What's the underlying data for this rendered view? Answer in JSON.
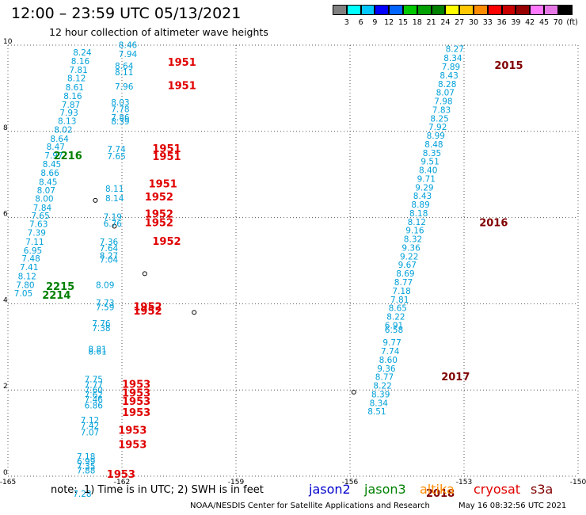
{
  "header": {
    "title": "12:00 – 23:59 UTC 05/13/2021",
    "subtitle": "12 hour collection of altimeter wave heights"
  },
  "color_scale": {
    "colors": [
      "#808080",
      "#00ffff",
      "#00c8ff",
      "#0000ff",
      "#0064ff",
      "#00c800",
      "#00a000",
      "#008000",
      "#ffff00",
      "#ffc800",
      "#ff8c00",
      "#ff0000",
      "#c80000",
      "#960000",
      "#ff78ff",
      "#e678e6",
      "#000000"
    ],
    "labels": [
      "3",
      "6",
      "9",
      "12",
      "15",
      "18",
      "21",
      "24",
      "27",
      "30",
      "33",
      "36",
      "39",
      "42",
      "45",
      "70",
      "(ft)"
    ]
  },
  "chart_data": {
    "type": "scatter",
    "x_range": [
      -165,
      -150
    ],
    "y_range": [
      0,
      10
    ],
    "x_ticks": [
      "-165",
      "-162",
      "-159",
      "-156",
      "-153",
      "-150"
    ],
    "y_ticks": [
      "0",
      "2",
      "4",
      "6",
      "8",
      "10"
    ],
    "grid": true,
    "series": [
      {
        "name": "jason2",
        "color": "#0000cc",
        "points": []
      },
      {
        "name": "jason3",
        "color": "#00a0d8",
        "points": [
          [
            -162.8,
            9.76,
            "8.24"
          ],
          [
            -162.85,
            9.56,
            "8.16"
          ],
          [
            -162.9,
            9.36,
            "7.81"
          ],
          [
            -162.95,
            9.16,
            "8.12"
          ],
          [
            -163.0,
            8.95,
            "8.61"
          ],
          [
            -163.05,
            8.75,
            "8.16"
          ],
          [
            -163.1,
            8.55,
            "7.87"
          ],
          [
            -163.15,
            8.36,
            "7.93"
          ],
          [
            -163.2,
            8.17,
            "8.13"
          ],
          [
            -163.3,
            7.97,
            "8.02"
          ],
          [
            -163.4,
            7.76,
            "8.64"
          ],
          [
            -163.5,
            7.57,
            "8.47"
          ],
          [
            -163.55,
            7.37,
            "7.97"
          ],
          [
            -163.6,
            7.17,
            "8.45"
          ],
          [
            -163.65,
            6.97,
            "8.66"
          ],
          [
            -163.7,
            6.76,
            "8.45"
          ],
          [
            -163.75,
            6.56,
            "8.07"
          ],
          [
            -163.8,
            6.37,
            "8.00"
          ],
          [
            -163.85,
            6.16,
            "7.84"
          ],
          [
            -163.9,
            5.97,
            "7.65"
          ],
          [
            -163.95,
            5.78,
            "7.63"
          ],
          [
            -164.0,
            5.58,
            "7.39"
          ],
          [
            -164.05,
            5.37,
            "7.11"
          ],
          [
            -164.1,
            5.17,
            "6.95"
          ],
          [
            -164.15,
            4.98,
            "7.48"
          ],
          [
            -164.2,
            4.78,
            "7.41"
          ],
          [
            -164.25,
            4.57,
            "8.12"
          ],
          [
            -164.3,
            4.37,
            "7.80"
          ],
          [
            -164.35,
            4.17,
            "7.05"
          ],
          [
            -161.6,
            9.94,
            "8.46"
          ],
          [
            -161.6,
            9.72,
            "7.94"
          ],
          [
            -161.7,
            9.45,
            "8.64"
          ],
          [
            -161.7,
            9.3,
            "8.11"
          ],
          [
            -161.7,
            8.97,
            "7.96"
          ],
          [
            -161.8,
            8.6,
            "8.03"
          ],
          [
            -161.8,
            8.45,
            "7.78"
          ],
          [
            -161.8,
            8.25,
            "7.86"
          ],
          [
            -161.8,
            8.16,
            "8.39"
          ],
          [
            -161.9,
            7.52,
            "7.74"
          ],
          [
            -161.9,
            7.35,
            "7.65"
          ],
          [
            -161.95,
            6.6,
            "8.11"
          ],
          [
            -161.95,
            6.38,
            "8.14"
          ],
          [
            -162.0,
            5.95,
            "7.19"
          ],
          [
            -162.0,
            5.79,
            "6.76"
          ],
          [
            -162.1,
            5.37,
            "7.36"
          ],
          [
            -162.1,
            5.22,
            "7.64"
          ],
          [
            -162.1,
            5.05,
            "8.27"
          ],
          [
            -162.1,
            4.95,
            "7.04"
          ],
          [
            -162.2,
            4.37,
            "8.09"
          ],
          [
            -162.2,
            3.95,
            "7.73"
          ],
          [
            -162.2,
            3.85,
            "7.59"
          ],
          [
            -162.3,
            3.47,
            "7.76"
          ],
          [
            -162.3,
            3.36,
            "7.38"
          ],
          [
            -162.4,
            2.88,
            "8.81"
          ],
          [
            -162.4,
            2.82,
            "8.61"
          ],
          [
            -162.5,
            2.18,
            "7.75"
          ],
          [
            -162.5,
            2.05,
            "7.77"
          ],
          [
            -162.5,
            1.93,
            "7.60"
          ],
          [
            -162.5,
            1.82,
            "7.62"
          ],
          [
            -162.5,
            1.71,
            "7.46"
          ],
          [
            -162.5,
            1.57,
            "6.86"
          ],
          [
            -162.6,
            1.23,
            "7.12"
          ],
          [
            -162.6,
            1.1,
            "7.42"
          ],
          [
            -162.6,
            0.95,
            "7.07"
          ],
          [
            -162.7,
            0.39,
            "7.18"
          ],
          [
            -162.7,
            0.28,
            "6.99"
          ],
          [
            -162.7,
            0.17,
            "7.35"
          ],
          [
            -162.7,
            0.06,
            "7.88"
          ],
          [
            -162.8,
            -0.48,
            "7.28"
          ],
          [
            -153.0,
            9.84,
            "8.27"
          ],
          [
            -153.05,
            9.63,
            "8.34"
          ],
          [
            -153.1,
            9.43,
            "7.89"
          ],
          [
            -153.15,
            9.23,
            "8.43"
          ],
          [
            -153.2,
            9.03,
            "8.28"
          ],
          [
            -153.25,
            8.83,
            "8.07"
          ],
          [
            -153.3,
            8.63,
            "7.98"
          ],
          [
            -153.35,
            8.43,
            "7.83"
          ],
          [
            -153.4,
            8.23,
            "8.25"
          ],
          [
            -153.45,
            8.03,
            "7.92"
          ],
          [
            -153.5,
            7.83,
            "8.99"
          ],
          [
            -153.55,
            7.63,
            "8.48"
          ],
          [
            -153.6,
            7.43,
            "8.35"
          ],
          [
            -153.65,
            7.23,
            "9.51"
          ],
          [
            -153.7,
            7.03,
            "8.40"
          ],
          [
            -153.75,
            6.83,
            "9.71"
          ],
          [
            -153.8,
            6.63,
            "9.29"
          ],
          [
            -153.85,
            6.43,
            "8.43"
          ],
          [
            -153.9,
            6.23,
            "8.89"
          ],
          [
            -153.95,
            6.03,
            "8.18"
          ],
          [
            -154.0,
            5.83,
            "8.12"
          ],
          [
            -154.05,
            5.63,
            "9.16"
          ],
          [
            -154.1,
            5.43,
            "8.32"
          ],
          [
            -154.15,
            5.23,
            "9.36"
          ],
          [
            -154.2,
            5.03,
            "9.22"
          ],
          [
            -154.25,
            4.83,
            "9.67"
          ],
          [
            -154.3,
            4.63,
            "8.69"
          ],
          [
            -154.35,
            4.43,
            "8.77"
          ],
          [
            -154.4,
            4.23,
            "7.18"
          ],
          [
            -154.45,
            4.03,
            "7.81"
          ],
          [
            -154.5,
            3.83,
            "8.65"
          ],
          [
            -154.55,
            3.63,
            "8.22"
          ],
          [
            -154.6,
            3.43,
            "6.91"
          ],
          [
            -154.6,
            3.33,
            "6.58"
          ],
          [
            -154.65,
            3.03,
            "9.77"
          ],
          [
            -154.7,
            2.83,
            "7.74"
          ],
          [
            -154.75,
            2.63,
            "8.60"
          ],
          [
            -154.8,
            2.43,
            "9.36"
          ],
          [
            -154.85,
            2.23,
            "8.77"
          ],
          [
            -154.9,
            2.03,
            "8.22"
          ],
          [
            -154.95,
            1.83,
            "8.39"
          ],
          [
            -155.0,
            1.63,
            "8.34"
          ],
          [
            -155.05,
            1.43,
            "8.51"
          ]
        ]
      },
      {
        "name": "altika",
        "color": "#ff8c00",
        "points": []
      },
      {
        "name": "cryosat",
        "color": "#e00000",
        "points": []
      },
      {
        "name": "s3a",
        "color": "#800000",
        "points": []
      }
    ],
    "pass_labels": [
      [
        "1951",
        "#e00000"
      ],
      [
        "1951",
        "#e00000"
      ],
      [
        "1951",
        "#e00000"
      ],
      [
        "1951",
        "#e00000"
      ],
      [
        "1951",
        "#e00000"
      ],
      [
        "1952",
        "#e00000"
      ],
      [
        "1952",
        "#e00000"
      ],
      [
        "1952",
        "#e00000"
      ],
      [
        "1952",
        "#e00000"
      ],
      [
        "1952",
        "#e00000"
      ],
      [
        "1952",
        "#e00000"
      ],
      [
        "1953",
        "#e00000"
      ],
      [
        "1953",
        "#e00000"
      ],
      [
        "1953",
        "#e00000"
      ],
      [
        "1953",
        "#e00000"
      ],
      [
        "1953",
        "#e00000"
      ],
      [
        "1953",
        "#e00000"
      ],
      [
        "1953",
        "#e00000"
      ],
      [
        "2216",
        "#008000"
      ],
      [
        "2215",
        "#008000"
      ],
      [
        "2214",
        "#008000"
      ],
      [
        "2015",
        "#800000"
      ],
      [
        "2016",
        "#800000"
      ],
      [
        "2017",
        "#800000"
      ],
      [
        "2018",
        "#800000"
      ]
    ]
  },
  "legend": {
    "note": "note:  1) Time is in UTC; 2) SWH is in feet",
    "items": [
      {
        "label": "jason2",
        "color": "#0000cc"
      },
      {
        "label": "jason3",
        "color": "#008000"
      },
      {
        "label": "altika",
        "color": "#ff8c00"
      },
      {
        "label": "cryosat",
        "color": "#e00000"
      },
      {
        "label": "s3a",
        "color": "#800000"
      }
    ]
  },
  "footer": {
    "credit": "NOAA/NESDIS Center for Satellite Applications and Research",
    "timestamp": "May 16 08:32:56 UTC 2021"
  }
}
